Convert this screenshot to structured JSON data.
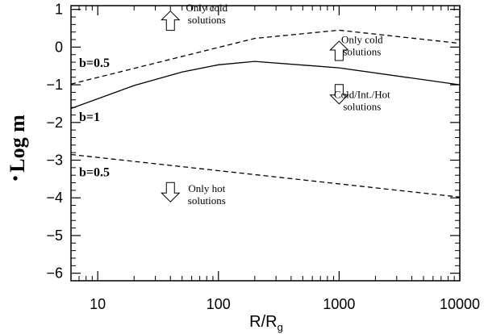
{
  "chart_data": {
    "type": "line",
    "xlabel": {
      "main": "R/R",
      "sub": "g"
    },
    "ylabel": {
      "main": "Log ",
      "var": "m"
    },
    "xscale": "log",
    "xlim": [
      6,
      10000
    ],
    "ylim": [
      -6.2,
      1.1
    ],
    "x_ticks": [
      {
        "v": 10,
        "label": "10"
      },
      {
        "v": 100,
        "label": "100"
      },
      {
        "v": 1000,
        "label": "1000"
      },
      {
        "v": 10000,
        "label": "10000"
      }
    ],
    "x_minor": [
      6,
      7,
      8,
      9,
      20,
      30,
      40,
      50,
      60,
      70,
      80,
      90,
      200,
      300,
      400,
      500,
      600,
      700,
      800,
      900,
      2000,
      3000,
      4000,
      5000,
      6000,
      7000,
      8000,
      9000
    ],
    "y_ticks": [
      {
        "v": 1,
        "label": "1"
      },
      {
        "v": 0,
        "label": "0"
      },
      {
        "v": -1,
        "label": "−1"
      },
      {
        "v": -2,
        "label": "−2"
      },
      {
        "v": -3,
        "label": "−3"
      },
      {
        "v": -4,
        "label": "−4"
      },
      {
        "v": -5,
        "label": "−5"
      },
      {
        "v": -6,
        "label": "−6"
      }
    ],
    "y_minor_step": 0.2,
    "grid": false,
    "series": [
      {
        "style": "dashed",
        "x": [
          6,
          200,
          1000,
          10000
        ],
        "y": [
          -0.98,
          0.23,
          0.45,
          0.1
        ]
      },
      {
        "style": "solid",
        "x": [
          6,
          20,
          50,
          100,
          200,
          1000,
          10000
        ],
        "y": [
          -1.63,
          -1.02,
          -0.66,
          -0.47,
          -0.38,
          -0.55,
          -1.0
        ]
      },
      {
        "style": "dashed",
        "x": [
          6,
          10000
        ],
        "y": [
          -2.85,
          -3.98
        ]
      }
    ],
    "annotations": [
      {
        "lines": [
          "Only cold",
          "solutions"
        ],
        "arrow": "up",
        "ax": 40,
        "ay": 0.7,
        "tx": 80,
        "ty": 0.95
      },
      {
        "lines": [
          "Only cold",
          "solutions"
        ],
        "arrow": "up",
        "ax": 1000,
        "ay": -0.1,
        "tx": 1550,
        "ty": 0.1
      },
      {
        "lines": [
          "Cold/Int./Hot",
          "solutions"
        ],
        "arrow": "down",
        "ax": 1000,
        "ay": -1.25,
        "tx": 1550,
        "ty": -1.35
      },
      {
        "lines": [
          "Only hot",
          "solutions"
        ],
        "arrow": "down",
        "ax": 40,
        "ay": -3.85,
        "tx": 80,
        "ty": -3.85
      }
    ],
    "labels": [
      {
        "text": "b=0.5",
        "x": 7,
        "y": -0.4
      },
      {
        "text": "b=1",
        "x": 7,
        "y": -1.83
      },
      {
        "text": "b=0.5",
        "x": 7,
        "y": -3.3
      }
    ]
  }
}
